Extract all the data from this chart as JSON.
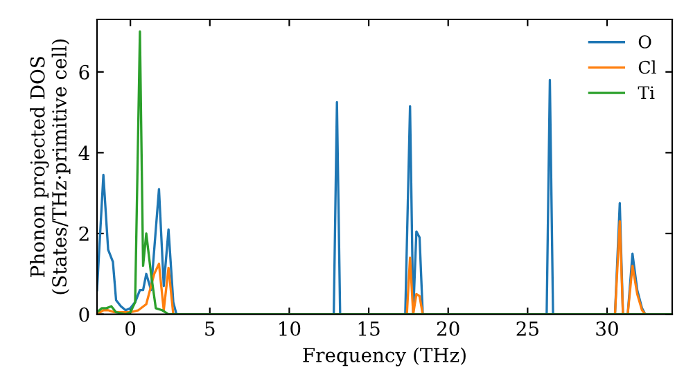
{
  "chart_data": {
    "type": "line",
    "xlabel": "Frequency (THz)",
    "ylabel": "Phonon projected DOS\n(States/THz·primitive cell)",
    "xlim": [
      -2.1,
      34.1
    ],
    "ylim": [
      0,
      7.3
    ],
    "xticks": [
      0,
      5,
      10,
      15,
      20,
      25,
      30
    ],
    "yticks": [
      0,
      2,
      4,
      6
    ],
    "legend": "top right",
    "grid": false,
    "series": [
      {
        "name": "O",
        "color": "#1f77b4",
        "x": [
          -2.1,
          -1.7,
          -1.4,
          -1.1,
          -0.9,
          -0.6,
          -0.3,
          0,
          0.3,
          0.6,
          0.8,
          1.0,
          1.3,
          1.8,
          2.1,
          2.4,
          2.7,
          2.9,
          12.8,
          13.0,
          13.2,
          17.3,
          17.6,
          17.8,
          18.0,
          18.2,
          18.4,
          26.2,
          26.4,
          26.6,
          30.5,
          30.8,
          31.0,
          31.3,
          31.6,
          31.9,
          32.2,
          32.4,
          34
        ],
        "values": [
          0.6,
          3.45,
          1.6,
          1.3,
          0.35,
          0.2,
          0.1,
          0.15,
          0.3,
          0.6,
          0.6,
          1.0,
          0.6,
          3.1,
          0.7,
          2.1,
          0.3,
          0,
          0,
          5.25,
          0,
          0,
          5.15,
          0,
          2.05,
          1.9,
          0,
          0,
          5.8,
          0,
          0,
          2.75,
          0,
          0,
          1.5,
          0.6,
          0.15,
          0,
          0
        ]
      },
      {
        "name": "Cl",
        "color": "#ff7f0e",
        "x": [
          -2.1,
          -1.7,
          -1.4,
          -1.0,
          0,
          0.5,
          1.0,
          1.5,
          1.8,
          2.1,
          2.4,
          2.7,
          17.4,
          17.6,
          17.8,
          18.0,
          18.2,
          18.4,
          30.5,
          30.8,
          31.0,
          31.3,
          31.6,
          31.9,
          32.2,
          32.4,
          34
        ],
        "values": [
          0,
          0.1,
          0.1,
          0.05,
          0.05,
          0.1,
          0.25,
          1.0,
          1.25,
          0.1,
          1.15,
          0,
          0,
          1.4,
          0,
          0.5,
          0.45,
          0,
          0,
          2.3,
          0,
          0,
          1.2,
          0.5,
          0.1,
          0,
          0
        ]
      },
      {
        "name": "Ti",
        "color": "#2ca02c",
        "x": [
          -2.1,
          -1.8,
          -1.5,
          -1.2,
          -0.9,
          -0.3,
          0,
          0.3,
          0.6,
          0.8,
          1.0,
          1.3,
          1.6,
          2.0,
          2.4,
          34
        ],
        "values": [
          0.05,
          0.15,
          0.15,
          0.2,
          0.05,
          0,
          0.05,
          0.3,
          7.0,
          1.2,
          2.0,
          1.0,
          0.15,
          0.1,
          0,
          0
        ]
      }
    ]
  }
}
